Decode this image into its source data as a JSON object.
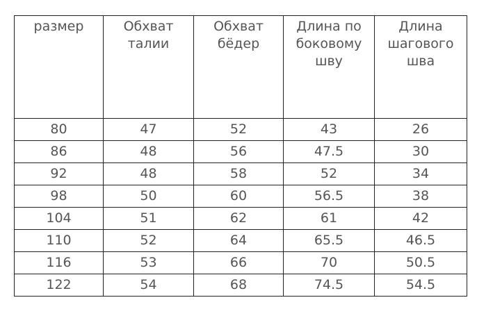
{
  "table": {
    "header": [
      "размер",
      "Обхват талии",
      "Обхват бёдер",
      "Длина по боковому шву",
      "Длина шагового шва"
    ],
    "rows": [
      [
        80,
        47,
        52,
        43,
        26
      ],
      [
        86,
        48,
        56,
        47.5,
        30
      ],
      [
        92,
        48,
        58,
        52,
        34
      ],
      [
        98,
        50,
        60,
        56.5,
        38
      ],
      [
        104,
        51,
        62,
        61,
        42
      ],
      [
        110,
        52,
        64,
        65.5,
        46.5
      ],
      [
        116,
        53,
        66,
        70,
        50.5
      ],
      [
        122,
        54,
        68,
        74.5,
        54.5
      ]
    ]
  }
}
